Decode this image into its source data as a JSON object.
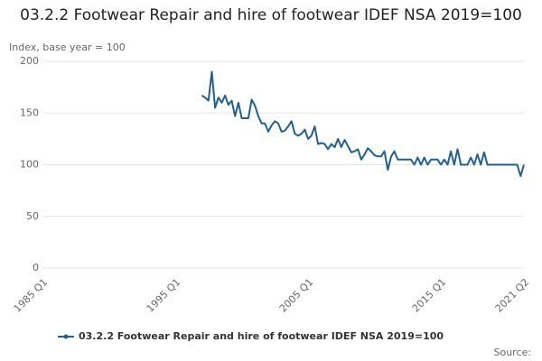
{
  "chart_data": {
    "type": "line",
    "title": "03.2.2 Footwear Repair and hire of footwear IDEF NSA 2019=100",
    "y_axis_label": "Index, base year = 100",
    "source": "Source:",
    "categories": [
      "1985 Q1",
      null,
      null,
      null,
      null,
      null,
      null,
      null,
      null,
      null,
      null,
      null,
      null,
      null,
      null,
      null,
      null,
      null,
      null,
      null,
      null,
      null,
      null,
      null,
      null,
      null,
      null,
      null,
      null,
      null,
      null,
      null,
      null,
      null,
      null,
      null,
      null,
      null,
      null,
      null,
      "1995 Q1",
      null,
      null,
      null,
      null,
      null,
      null,
      null,
      null,
      null,
      null,
      null,
      null,
      null,
      null,
      null,
      null,
      null,
      null,
      null,
      null,
      null,
      null,
      null,
      null,
      null,
      null,
      null,
      null,
      null,
      null,
      null,
      null,
      null,
      null,
      null,
      null,
      null,
      null,
      null,
      "2005 Q1",
      null,
      null,
      null,
      null,
      null,
      null,
      null,
      null,
      null,
      null,
      null,
      null,
      null,
      null,
      null,
      null,
      null,
      null,
      null,
      null,
      null,
      null,
      null,
      null,
      null,
      null,
      null,
      null,
      null,
      null,
      null,
      null,
      null,
      null,
      null,
      null,
      null,
      null,
      null,
      "2015 Q1",
      null,
      null,
      null,
      null,
      null,
      null,
      null,
      null,
      null,
      null,
      null,
      null,
      null,
      null,
      null,
      null,
      null,
      null,
      null,
      null,
      null,
      null,
      null,
      null,
      "2021 Q2"
    ],
    "series": [
      {
        "name": "03.2.2 Footwear Repair and hire of footwear IDEF NSA 2019=100",
        "color": "#206095",
        "values": [
          null,
          null,
          null,
          null,
          null,
          null,
          null,
          null,
          null,
          null,
          null,
          null,
          null,
          null,
          null,
          null,
          null,
          null,
          null,
          null,
          null,
          null,
          null,
          null,
          null,
          null,
          null,
          null,
          null,
          null,
          null,
          null,
          null,
          null,
          null,
          null,
          null,
          null,
          null,
          null,
          null,
          null,
          null,
          null,
          null,
          null,
          null,
          null,
          167,
          165,
          162,
          190,
          155,
          165,
          160,
          167,
          158,
          162,
          147,
          160,
          145,
          145,
          145,
          163,
          157,
          147,
          140,
          140,
          132,
          138,
          142,
          140,
          132,
          133,
          137,
          142,
          130,
          128,
          130,
          134,
          125,
          128,
          137,
          120,
          121,
          120,
          115,
          120,
          117,
          125,
          117,
          124,
          118,
          112,
          113,
          115,
          105,
          110,
          116,
          113,
          109,
          108,
          108,
          113,
          95,
          108,
          113,
          105,
          105,
          105,
          105,
          105,
          100,
          107,
          100,
          107,
          100,
          105,
          105,
          105,
          100,
          105,
          100,
          113,
          100,
          115,
          100,
          100,
          100,
          107,
          100,
          110,
          100,
          112,
          100,
          100,
          100,
          100,
          100,
          100,
          100,
          100,
          100,
          100,
          89,
          100
        ]
      }
    ],
    "ylim": [
      0,
      200
    ],
    "yticks": [
      0,
      50,
      100,
      150,
      200
    ],
    "grid": true,
    "legend": "bottom"
  }
}
